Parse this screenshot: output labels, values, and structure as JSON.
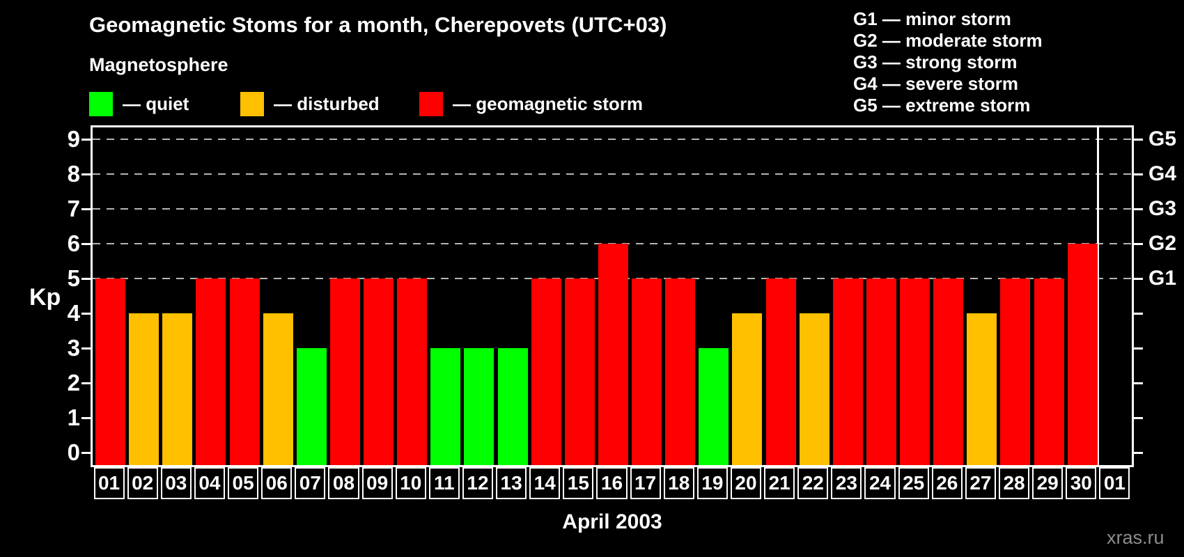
{
  "title": "Geomagnetic Stoms for a month, Cherepovets (UTC+03)",
  "subtitle": "Magnetosphere",
  "legend": {
    "items": [
      {
        "key": "quiet",
        "label": "— quiet",
        "color": "#00ff00"
      },
      {
        "key": "disturbed",
        "label": "— disturbed",
        "color": "#ffc000"
      },
      {
        "key": "storm",
        "label": "— geomagnetic storm",
        "color": "#ff0000"
      }
    ]
  },
  "g_legend": {
    "lines": [
      "G1 — minor storm",
      "G2 — moderate storm",
      "G3 — strong storm",
      "G4 — severe storm",
      "G5 — extreme storm"
    ]
  },
  "watermark": "xras.ru",
  "chart_data": {
    "type": "bar",
    "title": "Geomagnetic Stoms for a month, Cherepovets (UTC+03)",
    "xlabel": "April 2003",
    "ylabel": "Kp",
    "ylim": [
      0,
      9
    ],
    "yticks": [
      0,
      1,
      2,
      3,
      4,
      5,
      6,
      7,
      8,
      9
    ],
    "gridlines_at": [
      5,
      6,
      7,
      8,
      9
    ],
    "grid": "horizontal dashed lines at Kp 5-9 only",
    "legend_position": "top-left",
    "right_axis": {
      "5": "G1",
      "6": "G2",
      "7": "G3",
      "8": "G4",
      "9": "G5"
    },
    "categories": [
      "01",
      "02",
      "03",
      "04",
      "05",
      "06",
      "07",
      "08",
      "09",
      "10",
      "11",
      "12",
      "13",
      "14",
      "15",
      "16",
      "17",
      "18",
      "19",
      "20",
      "21",
      "22",
      "23",
      "24",
      "25",
      "26",
      "27",
      "28",
      "29",
      "30",
      "01"
    ],
    "month_boundary_index": 30,
    "series": [
      {
        "name": "Kp index",
        "values": [
          5,
          4,
          4,
          5,
          5,
          4,
          3,
          5,
          5,
          5,
          3,
          3,
          3,
          5,
          5,
          6,
          5,
          5,
          3,
          4,
          5,
          4,
          5,
          5,
          5,
          5,
          4,
          5,
          5,
          6,
          null
        ],
        "statuses": [
          "storm",
          "disturbed",
          "disturbed",
          "storm",
          "storm",
          "disturbed",
          "quiet",
          "storm",
          "storm",
          "storm",
          "quiet",
          "quiet",
          "quiet",
          "storm",
          "storm",
          "storm",
          "storm",
          "storm",
          "quiet",
          "disturbed",
          "storm",
          "disturbed",
          "storm",
          "storm",
          "storm",
          "storm",
          "disturbed",
          "storm",
          "storm",
          "storm",
          null
        ]
      }
    ],
    "status_colors": {
      "quiet": "#00ff00",
      "disturbed": "#ffc000",
      "storm": "#ff0000"
    }
  }
}
